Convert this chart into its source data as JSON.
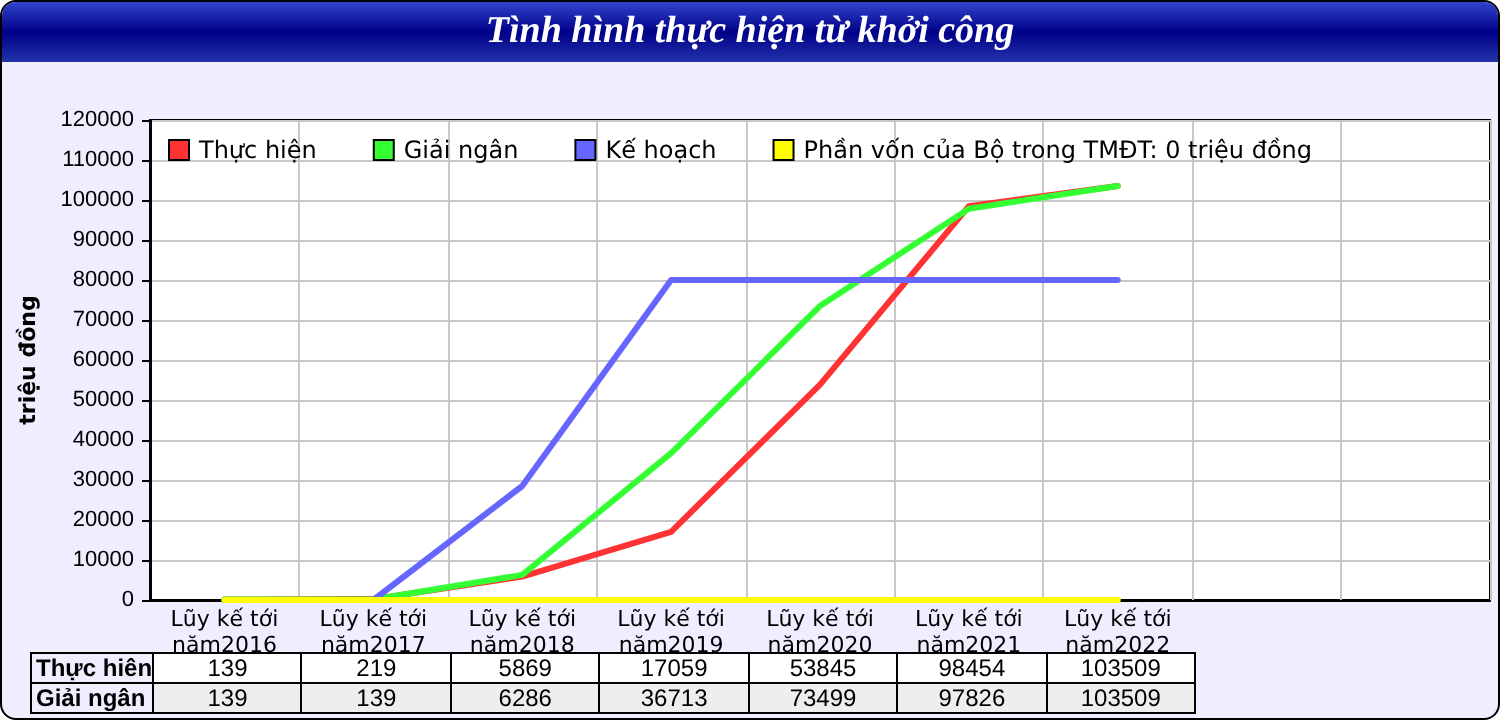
{
  "chart_data": {
    "type": "line",
    "title": "Tình hình thực hiện từ khởi công",
    "ylabel": "triệu đồng",
    "categories": [
      "Lũy kế tới\nnăm2016",
      "Lũy kế tới\nnăm2017",
      "Lũy kế tới\nnăm2018",
      "Lũy kế tới\nnăm2019",
      "Lũy kế tới\nnăm2020",
      "Lũy kế tới\nnăm2021",
      "Lũy kế tới\nnăm2022",
      null,
      null
    ],
    "series": [
      {
        "name": "Thực hiện",
        "color": "#ff3333",
        "values": [
          139,
          219,
          5869,
          17059,
          53845,
          98454,
          103509,
          null,
          null
        ],
        "value_labels": [
          "139",
          "219",
          "5869",
          "17059",
          "53845",
          "98454",
          "103509",
          null,
          null
        ]
      },
      {
        "name": "Giải ngân",
        "color": "#33ff33",
        "values": [
          139,
          139,
          6286,
          36713,
          73499,
          97826,
          103509,
          null,
          null
        ],
        "value_labels": [
          "139",
          "139",
          "6286",
          "36713",
          "73499",
          "97826",
          "103509",
          null,
          null
        ]
      },
      {
        "name": "Kế hoạch",
        "color": "#6666ff",
        "values": [
          0,
          0,
          28500,
          80000,
          80000,
          80000,
          80000,
          null,
          null
        ]
      },
      {
        "name": "Phần vốn của Bộ trong TMĐT: 0 triệu đồng",
        "color": "#ffff00",
        "values": [
          0,
          0,
          0,
          0,
          0,
          0,
          0,
          null,
          null
        ]
      }
    ],
    "annotations": [
      "Thực hiên",
      "Giải ngân"
    ],
    "ylim": [
      0,
      120000
    ],
    "yticks": [
      0,
      10000,
      20000,
      30000,
      40000,
      50000,
      60000,
      70000,
      80000,
      90000,
      100000,
      110000,
      120000
    ],
    "grid": true,
    "legend": "top left",
    "marker": "none",
    "line_style": "solid"
  }
}
